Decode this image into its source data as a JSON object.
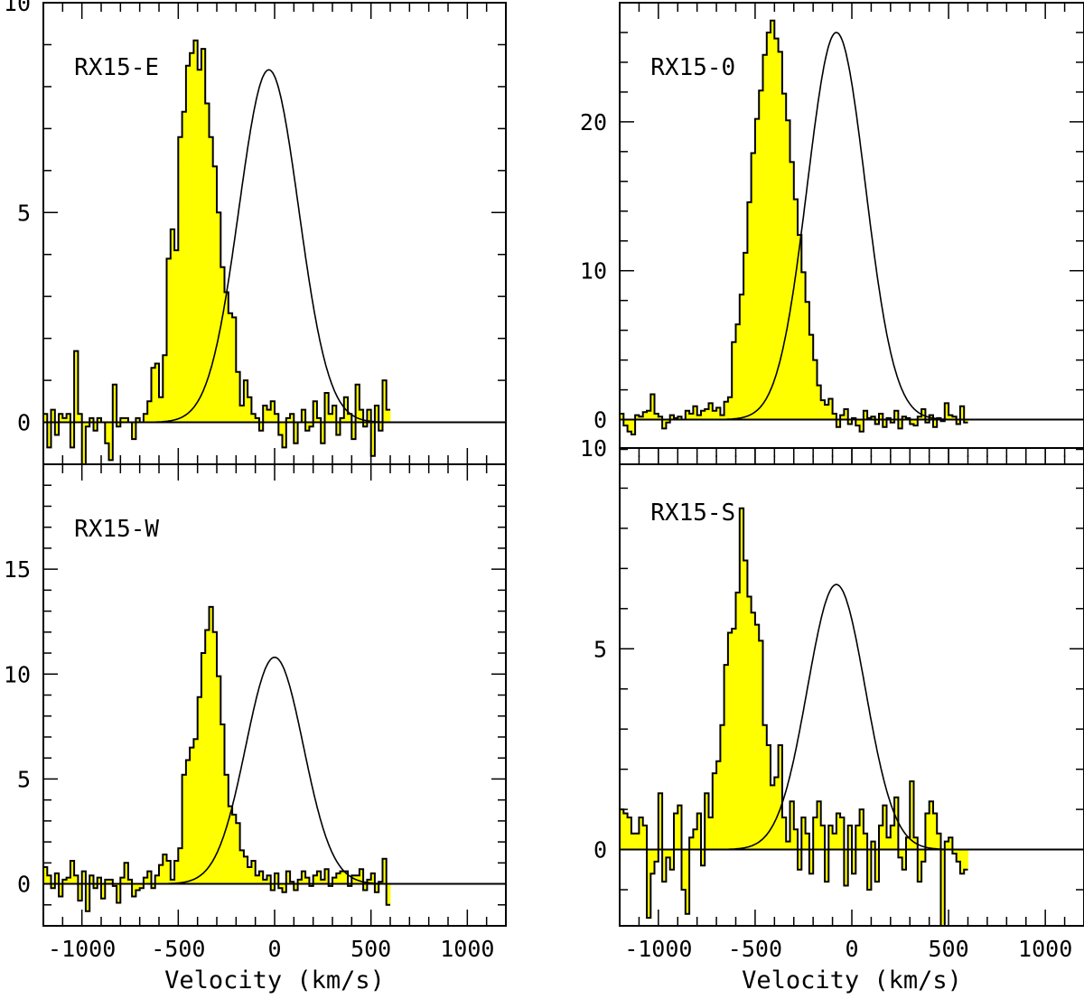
{
  "chart_data": [
    {
      "type": "area",
      "panel_label": "RX15-E",
      "position": "top-left",
      "xlim": [
        -1200,
        1200
      ],
      "ylim": [
        -1,
        10
      ],
      "y_ticks": [
        0,
        5,
        10
      ],
      "x_ticks": [
        -1000,
        -500,
        0,
        500,
        1000
      ],
      "gaussian": {
        "amplitude": 8.4,
        "center": -30,
        "sigma": 155
      },
      "series": [
        {
          "name": "spectrum",
          "x_start": -1190,
          "bin_width": 20,
          "values": [
            0.2,
            -0.6,
            0.3,
            -0.3,
            0.2,
            0.1,
            0.2,
            -0.6,
            1.7,
            0.2,
            -1.2,
            -0.1,
            0.1,
            -0.2,
            0.1,
            0.0,
            -0.5,
            -0.9,
            0.9,
            -0.1,
            0.1,
            0.1,
            0.0,
            -0.4,
            0.1,
            0.0,
            0.2,
            0.5,
            1.3,
            1.4,
            0.6,
            1.6,
            3.9,
            4.6,
            4.1,
            6.8,
            7.4,
            8.5,
            8.8,
            9.1,
            8.4,
            8.9,
            7.6,
            6.8,
            6.1,
            5.0,
            3.7,
            3.1,
            2.6,
            2.5,
            1.2,
            0.4,
            1.0,
            0.6,
            0.2,
            0.1,
            -0.2,
            0.4,
            0.3,
            0.5,
            0.2,
            -0.3,
            -0.6,
            0.1,
            0.2,
            -0.5,
            0.0,
            0.3,
            -0.2,
            -0.1,
            0.5,
            0.1,
            -0.5,
            0.7,
            0.2,
            0.4,
            -0.3,
            0.1,
            0.6,
            0.2,
            -0.4,
            0.9,
            0.3,
            -0.1,
            0.3,
            -0.8,
            0.4,
            -0.2,
            1.0,
            0.3
          ]
        }
      ]
    },
    {
      "type": "area",
      "panel_label": "RX15-0",
      "position": "top-right",
      "xlim": [
        -1200,
        1200
      ],
      "ylim": [
        -3,
        28
      ],
      "y_ticks": [
        0,
        10,
        20
      ],
      "x_ticks": [
        -1000,
        -500,
        0,
        500,
        1000
      ],
      "gaussian": {
        "amplitude": 26.0,
        "center": -80,
        "sigma": 150
      },
      "series": [
        {
          "name": "spectrum",
          "x_start": -1190,
          "bin_width": 20,
          "values": [
            0.4,
            -0.4,
            -0.8,
            -1.0,
            0.3,
            0.2,
            0.5,
            0.6,
            1.7,
            0.4,
            0.2,
            -0.6,
            -0.2,
            0.3,
            0.1,
            0.2,
            0.0,
            0.6,
            0.4,
            0.9,
            0.3,
            0.6,
            0.7,
            1.1,
            0.6,
            0.8,
            0.3,
            1.2,
            1.5,
            5.2,
            6.4,
            8.4,
            11.2,
            14.6,
            17.9,
            20.2,
            22.1,
            24.5,
            26.0,
            26.8,
            25.6,
            24.7,
            21.9,
            20.1,
            17.3,
            14.8,
            12.4,
            9.9,
            7.9,
            5.7,
            4.0,
            2.3,
            1.3,
            1.0,
            1.4,
            0.4,
            -0.5,
            0.3,
            0.7,
            -0.3,
            0.1,
            -0.4,
            -0.8,
            0.6,
            0.1,
            0.2,
            -0.3,
            0.4,
            -0.5,
            0.1,
            -0.2,
            0.6,
            -0.6,
            0.2,
            0.1,
            -0.3,
            -0.4,
            0.2,
            0.7,
            -0.2,
            0.3,
            -0.5,
            0.1,
            -0.1,
            1.1,
            0.3,
            0.2,
            -0.3,
            0.9,
            -0.2
          ]
        }
      ]
    },
    {
      "type": "area",
      "panel_label": "RX15-W",
      "position": "bottom-left",
      "xlim": [
        -1200,
        1200
      ],
      "ylim": [
        -2,
        20
      ],
      "y_ticks": [
        0,
        5,
        10,
        15
      ],
      "x_ticks": [
        -1000,
        -500,
        0,
        500,
        1000
      ],
      "gaussian": {
        "amplitude": 10.8,
        "center": 0,
        "sigma": 150
      },
      "series": [
        {
          "name": "spectrum",
          "x_start": -1190,
          "bin_width": 20,
          "values": [
            0.8,
            0.4,
            -0.2,
            0.5,
            -0.6,
            0.2,
            0.3,
            1.1,
            0.4,
            -0.8,
            0.6,
            -1.3,
            0.4,
            -0.2,
            0.3,
            -0.7,
            0.2,
            0.2,
            -0.1,
            -0.9,
            0.3,
            1.0,
            0.2,
            -0.6,
            -0.3,
            -0.2,
            0.3,
            0.6,
            -0.2,
            0.4,
            0.9,
            1.4,
            1.1,
            0.2,
            1.1,
            1.7,
            5.2,
            5.9,
            6.5,
            6.9,
            8.9,
            11.0,
            12.1,
            13.2,
            12.0,
            9.9,
            7.6,
            5.2,
            3.7,
            3.3,
            2.9,
            1.6,
            1.3,
            0.8,
            1.1,
            0.4,
            0.6,
            0.2,
            0.4,
            -0.3,
            0.5,
            -0.2,
            -0.4,
            0.6,
            0.1,
            -0.3,
            0.2,
            0.6,
            0.3,
            -0.1,
            0.4,
            0.6,
            0.2,
            0.7,
            -0.1,
            0.3,
            0.5,
            0.6,
            0.6,
            -0.1,
            0.4,
            0.4,
            0.7,
            -0.3,
            0.2,
            0.5,
            -0.4,
            0.1,
            1.2,
            -1.0
          ]
        }
      ]
    },
    {
      "type": "area",
      "panel_label": "RX15-S",
      "position": "bottom-right",
      "xlim": [
        -1200,
        1200
      ],
      "ylim": [
        -1.9,
        10
      ],
      "y_ticks": [
        0,
        5,
        10
      ],
      "x_ticks": [
        -1000,
        -500,
        0,
        500,
        1000
      ],
      "gaussian": {
        "amplitude": 6.6,
        "center": -80,
        "sigma": 150
      },
      "series": [
        {
          "name": "spectrum",
          "x_start": -1190,
          "bin_width": 20,
          "values": [
            1.0,
            0.9,
            0.8,
            0.4,
            0.4,
            0.8,
            0.6,
            -1.7,
            -0.6,
            -0.3,
            1.4,
            -0.8,
            -0.2,
            -0.5,
            0.9,
            1.1,
            -1.0,
            -1.6,
            0.3,
            0.5,
            0.9,
            -0.4,
            1.4,
            0.8,
            1.9,
            2.2,
            3.1,
            4.6,
            5.4,
            5.5,
            6.4,
            8.5,
            7.2,
            6.3,
            5.9,
            5.6,
            5.2,
            3.1,
            2.6,
            1.6,
            1.8,
            2.6,
            0.8,
            0.2,
            1.2,
            0.5,
            -0.5,
            0.8,
            0.4,
            -0.6,
            0.8,
            1.2,
            0.6,
            -0.8,
            0.6,
            0.4,
            0.9,
            0.8,
            -0.9,
            0.6,
            -0.6,
            0.6,
            1.0,
            0.4,
            -1.0,
            0.2,
            -0.8,
            0.6,
            1.1,
            0.3,
            0.6,
            1.3,
            -0.2,
            -0.5,
            0.3,
            1.7,
            0.3,
            -0.8,
            -0.3,
            0.9,
            1.2,
            0.9,
            0.4,
            -1.9,
            0.2,
            0.3,
            -0.1,
            -0.3,
            -0.6,
            -0.5
          ]
        }
      ]
    }
  ],
  "shared_xlabel": "Velocity (km/s)",
  "colors": {
    "fill": "#ffff00",
    "line": "#000000"
  }
}
